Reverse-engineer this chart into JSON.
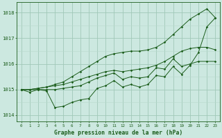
{
  "xlabel": "Graphe pression niveau de la mer (hPa)",
  "hours": [
    0,
    1,
    2,
    3,
    4,
    5,
    6,
    7,
    8,
    9,
    10,
    11,
    12,
    13,
    14,
    15,
    16,
    17,
    18,
    19,
    20,
    21,
    22,
    23
  ],
  "line1": [
    1015.0,
    1014.9,
    1015.0,
    1014.95,
    1014.3,
    1014.35,
    1014.5,
    1014.6,
    1014.65,
    1015.05,
    1015.15,
    1015.35,
    1015.1,
    1015.2,
    1015.1,
    1015.2,
    1015.55,
    1015.5,
    1015.9,
    1015.6,
    1015.95,
    1016.45,
    1017.45,
    1017.8
  ],
  "line2": [
    1015.0,
    1015.0,
    1015.0,
    1015.0,
    1015.0,
    1015.05,
    1015.1,
    1015.15,
    1015.3,
    1015.45,
    1015.55,
    1015.65,
    1015.4,
    1015.5,
    1015.45,
    1015.5,
    1015.85,
    1015.8,
    1016.2,
    1015.9,
    1016.0,
    1016.1,
    1016.1,
    1016.1
  ],
  "line3": [
    1015.0,
    1015.0,
    1015.05,
    1015.1,
    1015.15,
    1015.2,
    1015.3,
    1015.4,
    1015.5,
    1015.6,
    1015.7,
    1015.75,
    1015.7,
    1015.75,
    1015.8,
    1015.85,
    1015.95,
    1016.1,
    1016.3,
    1016.5,
    1016.6,
    1016.65,
    1016.65,
    1016.55
  ],
  "line4": [
    1015.0,
    1015.0,
    1015.05,
    1015.1,
    1015.2,
    1015.3,
    1015.5,
    1015.7,
    1015.9,
    1016.1,
    1016.3,
    1016.4,
    1016.45,
    1016.5,
    1016.5,
    1016.55,
    1016.65,
    1016.85,
    1017.15,
    1017.45,
    1017.75,
    1017.95,
    1018.15,
    1017.8
  ],
  "line_color": "#1a5c1a",
  "bg_color": "#cce8e0",
  "grid_color_major": "#a0c8b8",
  "grid_color_minor": "#b8d8cc",
  "ylim": [
    1013.75,
    1018.4
  ],
  "xlim": [
    -0.5,
    23.5
  ],
  "yticks": [
    1014,
    1015,
    1016,
    1017,
    1018
  ],
  "xticks": [
    0,
    1,
    2,
    3,
    4,
    5,
    6,
    7,
    8,
    9,
    10,
    11,
    12,
    13,
    14,
    15,
    16,
    17,
    18,
    19,
    20,
    21,
    22,
    23
  ]
}
